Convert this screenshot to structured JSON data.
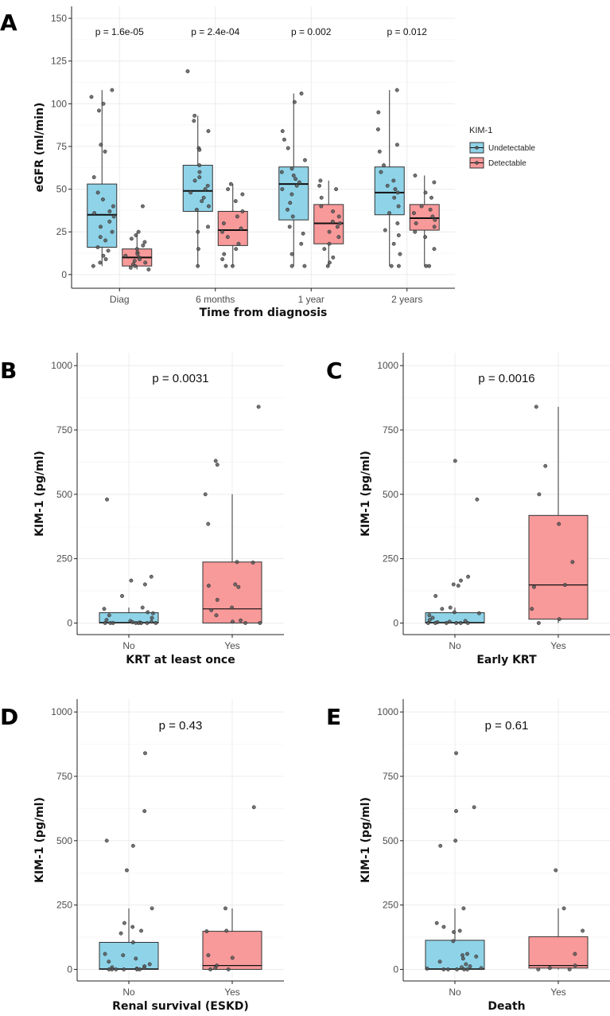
{
  "colors": {
    "undetectable": "#8fd3e8",
    "detectable": "#f8999a",
    "grid": "#ececec",
    "axis": "#222222",
    "point": "#5a5a5a"
  },
  "chart_data": [
    {
      "id": "A",
      "type": "boxplot",
      "panel_label": "A",
      "xlabel": "Time from diagnosis",
      "ylabel": "eGFR (ml/min)",
      "ylim": [
        -8,
        157
      ],
      "yticks": [
        0,
        25,
        50,
        75,
        100,
        125,
        150
      ],
      "categories": [
        "Diag",
        "6 months",
        "1 year",
        "2 years"
      ],
      "pvalues": [
        "p = 1.6e-05",
        "p = 2.4e-04",
        "p = 0.002",
        "p = 0.012"
      ],
      "legend": {
        "title": "KIM-1",
        "position": "right",
        "entries": [
          "Undetectable",
          "Detectable"
        ]
      },
      "groups": [
        {
          "category": "Diag",
          "series": "Undetectable",
          "box": {
            "q1": 16,
            "median": 35,
            "q3": 53,
            "whisker_low": 5,
            "whisker_high": 108
          },
          "points": [
            108,
            104,
            100,
            96,
            76,
            72,
            57,
            48,
            44,
            40,
            37,
            36,
            34,
            31,
            28,
            25,
            22,
            20,
            16,
            14,
            11,
            9,
            7,
            5
          ]
        },
        {
          "category": "Diag",
          "series": "Detectable",
          "box": {
            "q1": 5,
            "median": 10,
            "q3": 15,
            "whisker_low": 3,
            "whisker_high": 25
          },
          "points": [
            40,
            25,
            23,
            21,
            19,
            17,
            15,
            13,
            12,
            11,
            10,
            9,
            8,
            7,
            6,
            5,
            4,
            3
          ]
        },
        {
          "category": "6 months",
          "series": "Undetectable",
          "box": {
            "q1": 37,
            "median": 49,
            "q3": 64,
            "whisker_low": 5,
            "whisker_high": 93
          },
          "points": [
            119,
            93,
            90,
            84,
            74,
            73,
            64,
            60,
            57,
            55,
            52,
            50,
            48,
            45,
            43,
            40,
            38,
            28,
            25,
            15,
            5
          ]
        },
        {
          "category": "6 months",
          "series": "Detectable",
          "box": {
            "q1": 17,
            "median": 26,
            "q3": 37,
            "whisker_low": 5,
            "whisker_high": 53
          },
          "points": [
            53,
            50,
            47,
            43,
            37,
            34,
            30,
            27,
            25,
            22,
            18,
            15,
            12,
            9,
            5,
            5
          ]
        },
        {
          "category": "1 year",
          "series": "Undetectable",
          "box": {
            "q1": 32,
            "median": 53,
            "q3": 63,
            "whisker_low": 5,
            "whisker_high": 106
          },
          "points": [
            106,
            101,
            84,
            79,
            74,
            67,
            62,
            60,
            58,
            56,
            54,
            52,
            50,
            47,
            42,
            38,
            34,
            28,
            24,
            18,
            12,
            5,
            5
          ]
        },
        {
          "category": "1 year",
          "series": "Detectable",
          "box": {
            "q1": 18,
            "median": 30,
            "q3": 41,
            "whisker_low": 5,
            "whisker_high": 55
          },
          "points": [
            55,
            52,
            50,
            45,
            40,
            37,
            34,
            31,
            30,
            28,
            25,
            22,
            18,
            15,
            10,
            7,
            5
          ]
        },
        {
          "category": "2 years",
          "series": "Undetectable",
          "box": {
            "q1": 35,
            "median": 48,
            "q3": 63,
            "whisker_low": 5,
            "whisker_high": 108
          },
          "points": [
            108,
            95,
            85,
            76,
            72,
            64,
            60,
            55,
            52,
            50,
            48,
            45,
            40,
            36,
            30,
            26,
            23,
            18,
            12,
            5,
            5
          ]
        },
        {
          "category": "2 years",
          "series": "Detectable",
          "box": {
            "q1": 26,
            "median": 33,
            "q3": 41,
            "whisker_low": 5,
            "whisker_high": 58
          },
          "points": [
            58,
            54,
            48,
            45,
            40,
            38,
            36,
            34,
            32,
            30,
            28,
            25,
            22,
            15,
            5,
            5
          ]
        }
      ]
    },
    {
      "id": "B",
      "type": "boxplot",
      "panel_label": "B",
      "xlabel": "KRT at least once",
      "ylabel": "KIM-1 (pg/ml)",
      "pvalue": "p = 0.0031",
      "ylim": [
        -45,
        1050
      ],
      "yticks": [
        0,
        250,
        500,
        750,
        1000
      ],
      "categories": [
        "No",
        "Yes"
      ],
      "groups": [
        {
          "category": "No",
          "series": "Undetectable",
          "box": {
            "q1": 0,
            "median": 2,
            "q3": 40,
            "whisker_low": 0,
            "whisker_high": 60
          },
          "points": [
            480,
            180,
            165,
            150,
            105,
            60,
            55,
            42,
            38,
            30,
            20,
            12,
            8,
            5,
            3,
            2,
            0,
            0,
            0,
            0,
            0,
            0,
            0,
            0
          ]
        },
        {
          "category": "Yes",
          "series": "Detectable",
          "box": {
            "q1": 0,
            "median": 55,
            "q3": 237,
            "whisker_low": 0,
            "whisker_high": 500
          },
          "points": [
            840,
            630,
            615,
            500,
            385,
            237,
            235,
            150,
            145,
            140,
            90,
            60,
            50,
            30,
            10,
            5,
            0,
            0
          ]
        }
      ]
    },
    {
      "id": "C",
      "type": "boxplot",
      "panel_label": "C",
      "xlabel": "Early KRT",
      "ylabel": "KIM-1 (pg/ml)",
      "pvalue": "p = 0.0016",
      "ylim": [
        -45,
        1050
      ],
      "yticks": [
        0,
        250,
        500,
        750,
        1000
      ],
      "categories": [
        "No",
        "Yes"
      ],
      "groups": [
        {
          "category": "No",
          "series": "Undetectable",
          "box": {
            "q1": 0,
            "median": 2,
            "q3": 40,
            "whisker_low": 0,
            "whisker_high": 60
          },
          "points": [
            630,
            480,
            180,
            165,
            150,
            145,
            105,
            60,
            55,
            42,
            38,
            30,
            20,
            12,
            8,
            5,
            3,
            0,
            0,
            0,
            0,
            0,
            0
          ]
        },
        {
          "category": "Yes",
          "series": "Detectable",
          "box": {
            "q1": 15,
            "median": 148,
            "q3": 418,
            "whisker_low": 0,
            "whisker_high": 840
          },
          "points": [
            840,
            610,
            500,
            385,
            237,
            148,
            140,
            55,
            15,
            0
          ]
        }
      ]
    },
    {
      "id": "D",
      "type": "boxplot",
      "panel_label": "D",
      "xlabel": "Renal survival (ESKD)",
      "ylabel": "KIM-1 (pg/ml)",
      "pvalue": "p = 0.43",
      "ylim": [
        -45,
        1050
      ],
      "yticks": [
        0,
        250,
        500,
        750,
        1000
      ],
      "categories": [
        "No",
        "Yes"
      ],
      "groups": [
        {
          "category": "No",
          "series": "Undetectable",
          "box": {
            "q1": 0,
            "median": 2,
            "q3": 105,
            "whisker_low": 0,
            "whisker_high": 237
          },
          "points": [
            840,
            615,
            500,
            385,
            480,
            237,
            180,
            165,
            150,
            140,
            105,
            60,
            55,
            42,
            30,
            20,
            12,
            8,
            5,
            3,
            0,
            0,
            0,
            0,
            0,
            0
          ]
        },
        {
          "category": "Yes",
          "series": "Detectable",
          "box": {
            "q1": 0,
            "median": 15,
            "q3": 148,
            "whisker_low": 0,
            "whisker_high": 237
          },
          "points": [
            630,
            237,
            150,
            148,
            55,
            45,
            15,
            5,
            0,
            0
          ]
        }
      ]
    },
    {
      "id": "E",
      "type": "boxplot",
      "panel_label": "E",
      "xlabel": "Death",
      "ylabel": "KIM-1 (pg/ml)",
      "pvalue": "p = 0.61",
      "ylim": [
        -45,
        1050
      ],
      "yticks": [
        0,
        250,
        500,
        750,
        1000
      ],
      "categories": [
        "No",
        "Yes"
      ],
      "groups": [
        {
          "category": "No",
          "series": "Undetectable",
          "box": {
            "q1": 0,
            "median": 2,
            "q3": 113,
            "whisker_low": 0,
            "whisker_high": 237
          },
          "points": [
            840,
            630,
            615,
            500,
            480,
            237,
            180,
            165,
            150,
            145,
            110,
            60,
            55,
            50,
            42,
            30,
            20,
            12,
            8,
            5,
            3,
            0,
            0,
            0,
            0,
            0
          ]
        },
        {
          "category": "Yes",
          "series": "Detectable",
          "box": {
            "q1": 5,
            "median": 15,
            "q3": 127,
            "whisker_low": 0,
            "whisker_high": 237
          },
          "points": [
            385,
            237,
            150,
            60,
            15,
            5,
            0,
            0
          ]
        }
      ]
    }
  ]
}
